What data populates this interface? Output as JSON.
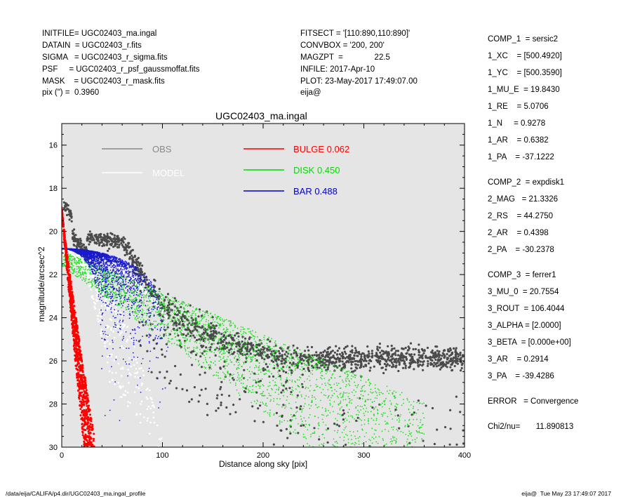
{
  "header_left": [
    "INITFILE= UGC02403_ma.ingal",
    "DATAIN  = UGC02403_r.fits",
    "SIGMA   = UGC02403_r_sigma.fits",
    "PSF     = UGC02403_r_psf_gaussmoffat.fits",
    "MASK    = UGC02403_r_mask.fits",
    "pix (\") =  0.3960"
  ],
  "header_mid": [
    "FITSECT = '[110:890,110:890]'",
    "CONVBOX = '200, 200'",
    "MAGZPT  =              22.5",
    "INFILE: 2017-Apr-10",
    "PLOT: 23-May-2017 17:49:07.00",
    "eija@"
  ],
  "params": [
    "COMP_1  = sersic2",
    "1_XC    = [500.4920]",
    "1_YC    = [500.3590]",
    "1_MU_E  = 19.8430",
    "1_RE    = 5.0706",
    "1_N     = 0.9278",
    "1_AR    = 0.6382",
    "1_PA    = -37.1222",
    "",
    "COMP_2  = expdisk1",
    "2_MAG   = 21.3326",
    "2_RS    = 44.2750",
    "2_AR    = 0.4398",
    "2_PA    = -30.2378",
    "",
    "COMP_3  = ferrer1",
    "3_MU_0  = 20.7554",
    "3_ROUT  = 106.4044",
    "3_ALPHA = [2.0000]",
    "3_BETA  = [0.000e+00]",
    "3_AR    = 0.2914",
    "3_PA    = -39.4286",
    "",
    "ERROR   = Convergence",
    "",
    "Chi2/nu=       11.890813"
  ],
  "footer": {
    "left": "/data/eija/CALIFA/p4.dir/UGC02403_ma.ingal_profile",
    "right": "eija@  Tue May 23 17:49:07 2017"
  },
  "chart_data": {
    "type": "scatter",
    "title": "UGC02403_ma.ingal",
    "xlabel": "Distance along sky [pix]",
    "ylabel": "magnitude/arcsec^2",
    "xlim": [
      0,
      400
    ],
    "ylim": [
      30,
      15
    ],
    "x_ticks": [
      "0",
      "100",
      "200",
      "300",
      "400"
    ],
    "y_ticks": [
      "16",
      "18",
      "20",
      "22",
      "24",
      "26",
      "28",
      "30"
    ],
    "background": "#e5e5e5",
    "legend": [
      {
        "name": "OBS",
        "color": "#888888",
        "value": ""
      },
      {
        "name": "MODEL",
        "color": "#ffffff",
        "value": ""
      },
      {
        "name": "BULGE",
        "color": "#ff0000",
        "value": "0.062"
      },
      {
        "name": "DISK",
        "color": "#00dd00",
        "value": "0.450"
      },
      {
        "name": "BAR",
        "color": "#0000cc",
        "value": "0.488"
      }
    ],
    "bulge": {
      "mu0": 18.9,
      "reaches_30_at_x": [
        22,
        34
      ]
    },
    "disk": {
      "mu0_range": [
        20.9,
        21.6
      ],
      "reaches_30_at_x": [
        210,
        355
      ]
    },
    "bar": {
      "mu0": 20.8,
      "rout_range": [
        40,
        108
      ]
    },
    "model": {
      "mu0": 20.9,
      "reaches_30_at_x": 55
    },
    "obs": {
      "mu_range_inner": [
        20.2,
        21.6
      ],
      "plateau_mu": [
        25.4,
        26.5
      ],
      "xmax": 400
    }
  }
}
